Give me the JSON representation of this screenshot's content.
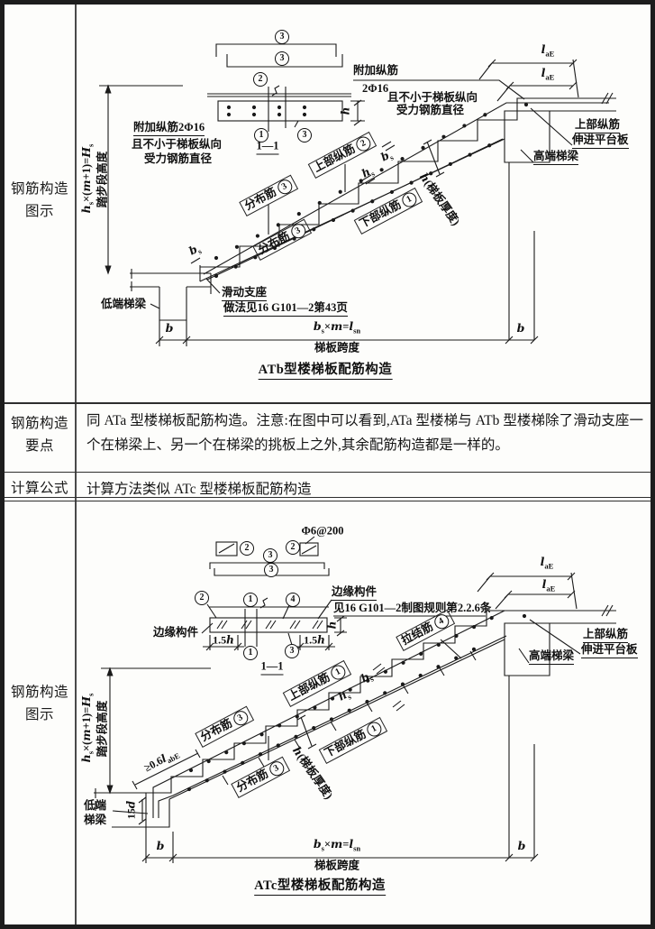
{
  "table": {
    "row1_label": [
      "钢筋构造",
      "图示"
    ],
    "row2_label": [
      "钢筋构造",
      "要点"
    ],
    "row2_text": "同 ATa 型楼梯板配筋构造。注意:在图中可以看到,ATa 型楼梯与 ATb 型楼梯除了滑动支座一个在梯梁上、另一个在梯梁的挑板上之外,其余配筋构造都是一样的。",
    "row3_label": "计算公式",
    "row3_text": "计算方法类似 ATc 型楼梯板配筋构造",
    "row4_label": [
      "钢筋构造",
      "图示"
    ]
  },
  "marks": {
    "n1": "1",
    "n2": "2",
    "n3": "3",
    "n4": "4"
  },
  "shared": {
    "laE_html": "<i>l</i><sub>aE</sub>",
    "b_html": "<i>b</i>",
    "h_html": "<i>h</i>",
    "bs_html": "<i>b</i><sub>s</sub>",
    "hs_html": "<i>h</i><sub>s</sub>",
    "span_html": "<i>b</i><sub>s</sub>×<i>m</i>=<i>l</i><sub>sn</sub>",
    "span_label": "梯板跨度",
    "height_html": "<i>h</i><sub>s</sub>×(<i>m</i>+1)=<i>H</i><sub>s</sub>",
    "height_label": "踏步段高度",
    "slab_h_html": "<i>h</i>(梯板厚度)",
    "sec_title": "1—1",
    "upper_bar": "上部纵筋",
    "lower_bar": "下部纵筋",
    "dist_bar": "分布筋",
    "into_platform": [
      "上部纵筋",
      "伸进平台板"
    ],
    "high_beam": "高端梯梁"
  },
  "atb": {
    "caption": "ATb型楼梯板配筋构造",
    "add_left": [
      "附加纵筋2Φ16",
      "且不小于梯板纵向",
      "受力钢筋直径"
    ],
    "add_right": [
      "附加纵筋",
      "2Φ16",
      "且不小于梯板纵向",
      "受力钢筋直径"
    ],
    "low_beam": "低端梯梁",
    "slide": [
      "滑动支座",
      "做法见16 G101—2第43页"
    ]
  },
  "atc": {
    "caption": "ATc型楼梯板配筋构造",
    "phi6": "Φ6@200",
    "edge_left": "边缘构件",
    "edge_right": [
      "边缘构件",
      "见16 G101—2制图规则第2.2.6条"
    ],
    "tie_bar": "拉结筋",
    "anchor_html": "≥0.6<i>l</i><sub>abE</sub>",
    "hook_html": "15<i>d</i>",
    "onefive_html": "1.5<i>h</i>",
    "low_beam": [
      "低端",
      "梯梁"
    ]
  }
}
